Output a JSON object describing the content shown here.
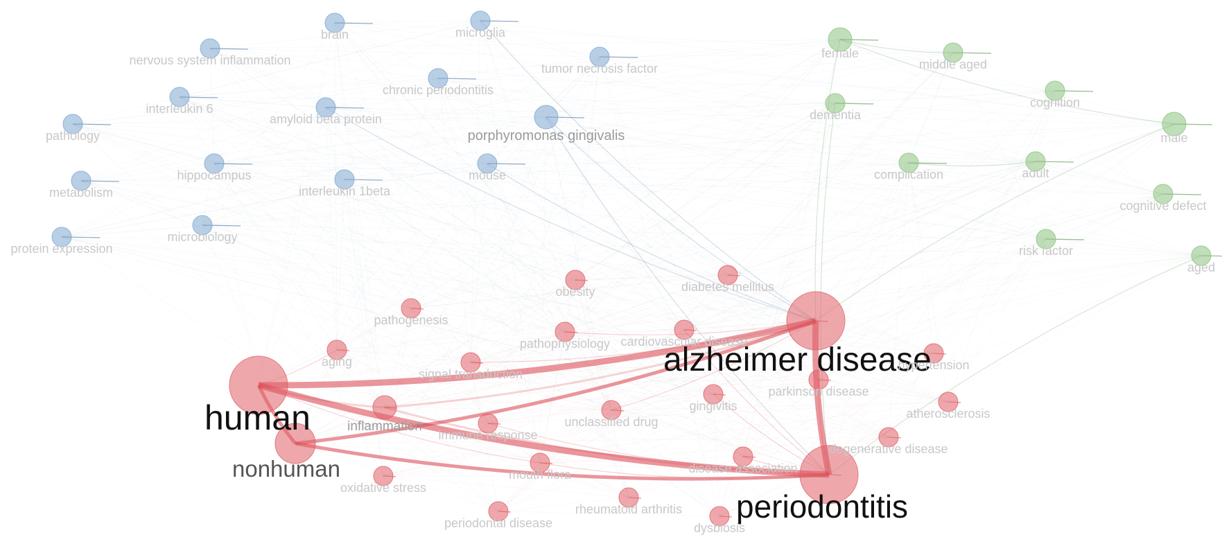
{
  "colors": {
    "blue": "#7fa7cf",
    "green": "#8cc27f",
    "red": "#e06068",
    "edge_red": "#d8404a",
    "edge_blue": "#4a6fa0",
    "edge_green": "#4f8a45",
    "label_dark": "#111111",
    "label_mid": "#555555",
    "label_light": "#c8c8c8"
  },
  "nodes": [
    {
      "id": "brain",
      "label": "brain",
      "cluster": "blue",
      "weight": 1
    },
    {
      "id": "microglia",
      "label": "microglia",
      "cluster": "blue",
      "weight": 1
    },
    {
      "id": "nervous-system-inflammation",
      "label": "nervous system inflammation",
      "cluster": "blue",
      "weight": 1
    },
    {
      "id": "tumor-necrosis-factor",
      "label": "tumor necrosis factor",
      "cluster": "blue",
      "weight": 1
    },
    {
      "id": "chronic-periodontitis",
      "label": "chronic periodontitis",
      "cluster": "blue",
      "weight": 1
    },
    {
      "id": "interleukin-6",
      "label": "interleukin 6",
      "cluster": "blue",
      "weight": 1
    },
    {
      "id": "amyloid-beta-protein",
      "label": "amyloid beta protein",
      "cluster": "blue",
      "weight": 1
    },
    {
      "id": "porphyromonas-gingivalis",
      "label": "porphyromonas gingivalis",
      "cluster": "blue",
      "weight": 2
    },
    {
      "id": "pathology",
      "label": "pathology",
      "cluster": "blue",
      "weight": 1
    },
    {
      "id": "hippocampus",
      "label": "hippocampus",
      "cluster": "blue",
      "weight": 1
    },
    {
      "id": "mouse",
      "label": "mouse",
      "cluster": "blue",
      "weight": 1
    },
    {
      "id": "metabolism",
      "label": "metabolism",
      "cluster": "blue",
      "weight": 1
    },
    {
      "id": "interleukin-1beta",
      "label": "interleukin 1beta",
      "cluster": "blue",
      "weight": 1
    },
    {
      "id": "microbiology",
      "label": "microbiology",
      "cluster": "blue",
      "weight": 1
    },
    {
      "id": "protein-expression",
      "label": "protein expression",
      "cluster": "blue",
      "weight": 1
    },
    {
      "id": "female",
      "label": "female",
      "cluster": "green",
      "weight": 2
    },
    {
      "id": "middle-aged",
      "label": "middle aged",
      "cluster": "green",
      "weight": 1
    },
    {
      "id": "cognition",
      "label": "cognition",
      "cluster": "green",
      "weight": 1
    },
    {
      "id": "dementia",
      "label": "dementia",
      "cluster": "green",
      "weight": 1
    },
    {
      "id": "male",
      "label": "male",
      "cluster": "green",
      "weight": 2
    },
    {
      "id": "complication",
      "label": "complication",
      "cluster": "green",
      "weight": 1
    },
    {
      "id": "adult",
      "label": "adult",
      "cluster": "green",
      "weight": 1
    },
    {
      "id": "cognitive-defect",
      "label": "cognitive defect",
      "cluster": "green",
      "weight": 1
    },
    {
      "id": "risk-factor",
      "label": "risk factor",
      "cluster": "green",
      "weight": 1
    },
    {
      "id": "aged",
      "label": "aged",
      "cluster": "green",
      "weight": 1
    },
    {
      "id": "obesity",
      "label": "obesity",
      "cluster": "red",
      "weight": 1
    },
    {
      "id": "diabetes-mellitus",
      "label": "diabetes mellitus",
      "cluster": "red",
      "weight": 1
    },
    {
      "id": "pathogenesis",
      "label": "pathogenesis",
      "cluster": "red",
      "weight": 1
    },
    {
      "id": "pathophysiology",
      "label": "pathophysiology",
      "cluster": "red",
      "weight": 1
    },
    {
      "id": "cardiovascular-disease",
      "label": "cardiovascular disease",
      "cluster": "red",
      "weight": 1
    },
    {
      "id": "alzheimer-disease",
      "label": "alzheimer disease",
      "cluster": "red",
      "weight": 10
    },
    {
      "id": "aging",
      "label": "aging",
      "cluster": "red",
      "weight": 1
    },
    {
      "id": "signal-transduction",
      "label": "signal transduction",
      "cluster": "red",
      "weight": 1
    },
    {
      "id": "hypertension",
      "label": "hypertension",
      "cluster": "red",
      "weight": 1
    },
    {
      "id": "human",
      "label": "human",
      "cluster": "red",
      "weight": 10
    },
    {
      "id": "parkinson-disease",
      "label": "parkinson disease",
      "cluster": "red",
      "weight": 1
    },
    {
      "id": "gingivitis",
      "label": "gingivitis",
      "cluster": "red",
      "weight": 1
    },
    {
      "id": "inflammation",
      "label": "inflammation",
      "cluster": "red",
      "weight": 2
    },
    {
      "id": "unclassified-drug",
      "label": "unclassified drug",
      "cluster": "red",
      "weight": 1
    },
    {
      "id": "atherosclerosis",
      "label": "atherosclerosis",
      "cluster": "red",
      "weight": 1
    },
    {
      "id": "immune-response",
      "label": "immune response",
      "cluster": "red",
      "weight": 1
    },
    {
      "id": "nonhuman",
      "label": "nonhuman",
      "cluster": "red",
      "weight": 5
    },
    {
      "id": "degenerative-disease",
      "label": "degenerative disease",
      "cluster": "red",
      "weight": 1
    },
    {
      "id": "disease-association",
      "label": "disease association",
      "cluster": "red",
      "weight": 1
    },
    {
      "id": "mouth-flora",
      "label": "mouth flora",
      "cluster": "red",
      "weight": 1
    },
    {
      "id": "periodontitis",
      "label": "periodontitis",
      "cluster": "red",
      "weight": 10
    },
    {
      "id": "oxidative-stress",
      "label": "oxidative stress",
      "cluster": "red",
      "weight": 1
    },
    {
      "id": "rheumatoid-arthritis",
      "label": "rheumatoid arthritis",
      "cluster": "red",
      "weight": 1
    },
    {
      "id": "periodontal-disease",
      "label": "periodontal disease",
      "cluster": "red",
      "weight": 1
    },
    {
      "id": "dysbiosis",
      "label": "dysbiosis",
      "cluster": "red",
      "weight": 1
    }
  ],
  "links": [
    {
      "source": "human",
      "target": "alzheimer-disease",
      "strength": 10
    },
    {
      "source": "human",
      "target": "periodontitis",
      "strength": 9
    },
    {
      "source": "alzheimer-disease",
      "target": "periodontitis",
      "strength": 9
    },
    {
      "source": "human",
      "target": "nonhuman",
      "strength": 5
    },
    {
      "source": "nonhuman",
      "target": "alzheimer-disease",
      "strength": 5
    },
    {
      "source": "nonhuman",
      "target": "periodontitis",
      "strength": 4
    },
    {
      "source": "inflammation",
      "target": "alzheimer-disease",
      "strength": 2
    },
    {
      "source": "inflammation",
      "target": "periodontitis",
      "strength": 2
    },
    {
      "source": "human",
      "target": "inflammation",
      "strength": 2
    },
    {
      "source": "signal-transduction",
      "target": "alzheimer-disease",
      "strength": 1
    },
    {
      "source": "cardiovascular-disease",
      "target": "periodontitis",
      "strength": 1
    },
    {
      "source": "parkinson-disease",
      "target": "periodontitis",
      "strength": 1
    },
    {
      "source": "disease-association",
      "target": "periodontitis",
      "strength": 1
    },
    {
      "source": "porphyromonas-gingivalis",
      "target": "alzheimer-disease",
      "strength": 1
    },
    {
      "source": "porphyromonas-gingivalis",
      "target": "periodontitis",
      "strength": 1
    },
    {
      "source": "female",
      "target": "alzheimer-disease",
      "strength": 1
    },
    {
      "source": "male",
      "target": "alzheimer-disease",
      "strength": 1
    },
    {
      "source": "dementia",
      "target": "periodontitis",
      "strength": 1
    },
    {
      "source": "aged",
      "target": "periodontitis",
      "strength": 1
    },
    {
      "source": "female",
      "target": "male",
      "strength": 1
    },
    {
      "source": "female",
      "target": "middle-aged",
      "strength": 1
    },
    {
      "source": "complication",
      "target": "adult",
      "strength": 1
    },
    {
      "source": "amyloid-beta-protein",
      "target": "alzheimer-disease",
      "strength": 1
    },
    {
      "source": "microglia",
      "target": "alzheimer-disease",
      "strength": 1
    },
    {
      "source": "mouse",
      "target": "alzheimer-disease",
      "strength": 1
    },
    {
      "source": "human",
      "target": "aging",
      "strength": 1
    },
    {
      "source": "human",
      "target": "mouth-flora",
      "strength": 1
    },
    {
      "source": "mouth-flora",
      "target": "periodontitis",
      "strength": 1
    },
    {
      "source": "unclassified-drug",
      "target": "alzheimer-disease",
      "strength": 1
    },
    {
      "source": "immune-response",
      "target": "periodontitis",
      "strength": 1
    },
    {
      "source": "gingivitis",
      "target": "periodontitis",
      "strength": 1
    },
    {
      "source": "pathophysiology",
      "target": "alzheimer-disease",
      "strength": 1
    }
  ]
}
